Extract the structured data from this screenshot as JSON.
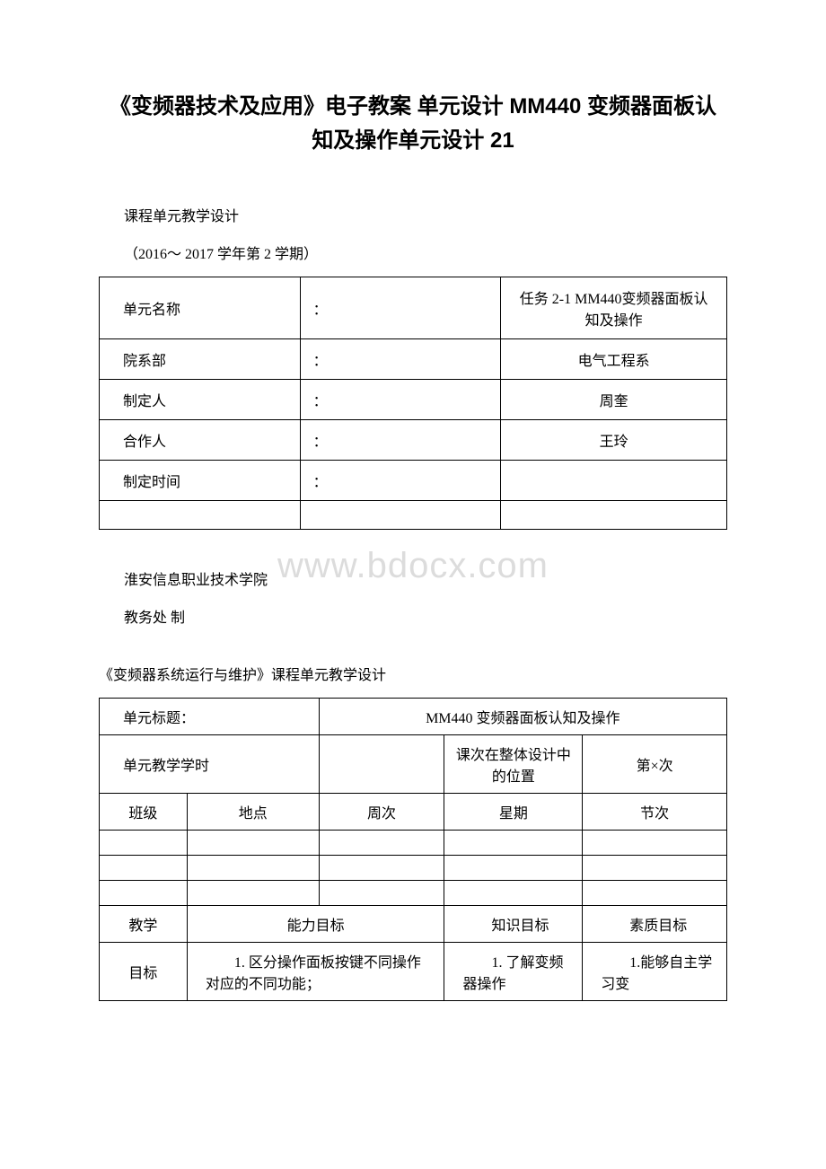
{
  "title": "《变频器技术及应用》电子教案 单元设计 MM440 变频器面板认知及操作单元设计 21",
  "section1": "课程单元教学设计",
  "semester": "（2016～ 2017 学年第 2 学期）",
  "watermark": "www.bdocx.com",
  "infoTable": {
    "rows": [
      {
        "label": "单元名称",
        "colon": "：",
        "value": "任务 2-1 MM440变频器面板认知及操作"
      },
      {
        "label": "院系部",
        "colon": "：",
        "value": "电气工程系"
      },
      {
        "label": "制定人",
        "colon": "：",
        "value": "周奎"
      },
      {
        "label": "合作人",
        "colon": "：",
        "value": "王玲"
      },
      {
        "label": "制定时间",
        "colon": "：",
        "value": ""
      }
    ]
  },
  "institution": "淮安信息职业技术学院",
  "department": "教务处 制",
  "courseHeading": "《变频器系统运行与维护》课程单元教学设计",
  "designTable": {
    "row1": {
      "label": "单元标题：",
      "value": "MM440 变频器面板认知及操作"
    },
    "row2": {
      "label": "单元教学学时",
      "blank": "",
      "position": "课次在整体设计中的位置",
      "count": "第×次"
    },
    "row3": {
      "c1": "班级",
      "c2": "地点",
      "c3": "周次",
      "c4": "星期",
      "c5": "节次"
    },
    "goals": {
      "vertLabel1": "教学",
      "vertLabel2": "目标",
      "ability": "能力目标",
      "knowledge": "　　知识目标",
      "quality": "　　素质目标",
      "abilityDetail": "　　1. 区分操作面板按键不同操作对应的不同功能；",
      "knowledgeDetail": "　　1. 了解变频器操作",
      "qualityDetail": "　　1.能够自主学习变"
    }
  },
  "colors": {
    "text": "#000000",
    "background": "#ffffff",
    "border": "#000000",
    "watermark": "#dcdcdc"
  }
}
